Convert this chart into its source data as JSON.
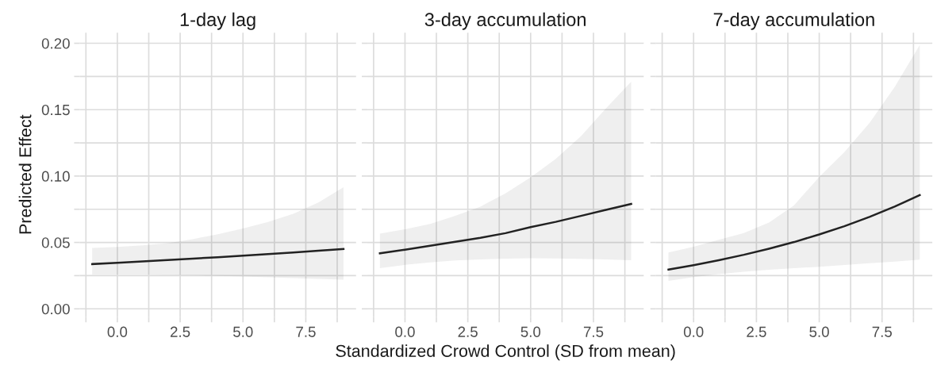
{
  "chart_data": [
    {
      "type": "line",
      "title": "1-day lag",
      "ylabel": "Predicted Effect",
      "grid": true,
      "tick_labels": "xy",
      "xlim": [
        -1.5,
        9.5
      ],
      "ylim": [
        -0.006,
        0.208
      ],
      "xticks": [
        {
          "value": -1.25,
          "label": null
        },
        {
          "value": 0,
          "label": "0.0"
        },
        {
          "value": 1.25,
          "label": null
        },
        {
          "value": 2.5,
          "label": "2.5"
        },
        {
          "value": 3.75,
          "label": null
        },
        {
          "value": 5,
          "label": "5.0"
        },
        {
          "value": 6.25,
          "label": null
        },
        {
          "value": 7.5,
          "label": "7.5"
        },
        {
          "value": 8.75,
          "label": null
        }
      ],
      "yticks": [
        {
          "value": 0,
          "label": "0.00"
        },
        {
          "value": 0.025,
          "label": null
        },
        {
          "value": 0.05,
          "label": "0.05"
        },
        {
          "value": 0.075,
          "label": null
        },
        {
          "value": 0.1,
          "label": "0.10"
        },
        {
          "value": 0.125,
          "label": null
        },
        {
          "value": 0.15,
          "label": "0.15"
        },
        {
          "value": 0.175,
          "label": null
        },
        {
          "value": 0.2,
          "label": "0.20"
        }
      ],
      "x": [
        -1,
        0,
        1,
        2,
        3,
        4,
        5,
        6,
        7,
        8,
        9
      ],
      "series": [
        {
          "color": "#222222",
          "values": [
            0.0337,
            0.0347,
            0.0357,
            0.0367,
            0.0378,
            0.0389,
            0.04,
            0.0412,
            0.0424,
            0.0437,
            0.0451
          ],
          "upper": [
            0.0459,
            0.0466,
            0.0478,
            0.0495,
            0.0525,
            0.0562,
            0.0605,
            0.0655,
            0.0715,
            0.08,
            0.0916
          ],
          "lower": [
            0.0259,
            0.0259,
            0.0258,
            0.0256,
            0.0252,
            0.0248,
            0.0244,
            0.0238,
            0.0232,
            0.0226,
            0.022
          ]
        }
      ]
    },
    {
      "type": "line",
      "title": "3-day accumulation",
      "xlabel": "Standardized Crowd Control (SD from mean)",
      "grid": true,
      "tick_labels": "x",
      "xlim": [
        -1.5,
        9.5
      ],
      "ylim": [
        -0.006,
        0.208
      ],
      "xticks": [
        {
          "value": -1.25,
          "label": null
        },
        {
          "value": 0,
          "label": "0.0"
        },
        {
          "value": 1.25,
          "label": null
        },
        {
          "value": 2.5,
          "label": "2.5"
        },
        {
          "value": 3.75,
          "label": null
        },
        {
          "value": 5,
          "label": "5.0"
        },
        {
          "value": 6.25,
          "label": null
        },
        {
          "value": 7.5,
          "label": "7.5"
        },
        {
          "value": 8.75,
          "label": null
        }
      ],
      "yticks": [
        {
          "value": 0,
          "label": null
        },
        {
          "value": 0.025,
          "label": null
        },
        {
          "value": 0.05,
          "label": null
        },
        {
          "value": 0.075,
          "label": null
        },
        {
          "value": 0.1,
          "label": null
        },
        {
          "value": 0.125,
          "label": null
        },
        {
          "value": 0.15,
          "label": null
        },
        {
          "value": 0.175,
          "label": null
        },
        {
          "value": 0.2,
          "label": null
        }
      ],
      "x": [
        -1,
        0,
        1,
        2,
        3,
        4,
        5,
        6,
        7,
        8,
        9
      ],
      "series": [
        {
          "color": "#222222",
          "values": [
            0.0418,
            0.0445,
            0.0475,
            0.0505,
            0.0535,
            0.057,
            0.0615,
            0.0655,
            0.07,
            0.0745,
            0.079
          ],
          "upper": [
            0.0566,
            0.0599,
            0.064,
            0.07,
            0.077,
            0.087,
            0.099,
            0.113,
            0.13,
            0.151,
            0.171
          ],
          "lower": [
            0.0307,
            0.0331,
            0.035,
            0.0364,
            0.0372,
            0.0378,
            0.0381,
            0.038,
            0.0377,
            0.0372,
            0.0366
          ]
        }
      ]
    },
    {
      "type": "line",
      "title": "7-day accumulation",
      "grid": true,
      "tick_labels": "x",
      "xlim": [
        -1.5,
        9.5
      ],
      "ylim": [
        -0.006,
        0.208
      ],
      "xticks": [
        {
          "value": -1.25,
          "label": null
        },
        {
          "value": 0,
          "label": "0.0"
        },
        {
          "value": 1.25,
          "label": null
        },
        {
          "value": 2.5,
          "label": "2.5"
        },
        {
          "value": 3.75,
          "label": null
        },
        {
          "value": 5,
          "label": "5.0"
        },
        {
          "value": 6.25,
          "label": null
        },
        {
          "value": 7.5,
          "label": "7.5"
        },
        {
          "value": 8.75,
          "label": null
        }
      ],
      "yticks": [
        {
          "value": 0,
          "label": null
        },
        {
          "value": 0.025,
          "label": null
        },
        {
          "value": 0.05,
          "label": null
        },
        {
          "value": 0.075,
          "label": null
        },
        {
          "value": 0.1,
          "label": null
        },
        {
          "value": 0.125,
          "label": null
        },
        {
          "value": 0.15,
          "label": null
        },
        {
          "value": 0.175,
          "label": null
        },
        {
          "value": 0.2,
          "label": null
        }
      ],
      "x": [
        -1,
        0,
        1,
        2,
        3,
        4,
        5,
        6,
        7,
        8,
        9
      ],
      "series": [
        {
          "color": "#222222",
          "values": [
            0.0296,
            0.0329,
            0.0366,
            0.0407,
            0.0453,
            0.0503,
            0.056,
            0.0622,
            0.0692,
            0.077,
            0.0856
          ],
          "upper": [
            0.0424,
            0.0467,
            0.052,
            0.057,
            0.065,
            0.078,
            0.0994,
            0.118,
            0.14,
            0.167,
            0.1986
          ],
          "lower": [
            0.021,
            0.0239,
            0.0262,
            0.028,
            0.0294,
            0.0306,
            0.0317,
            0.033,
            0.0343,
            0.0356,
            0.037
          ]
        }
      ]
    }
  ]
}
